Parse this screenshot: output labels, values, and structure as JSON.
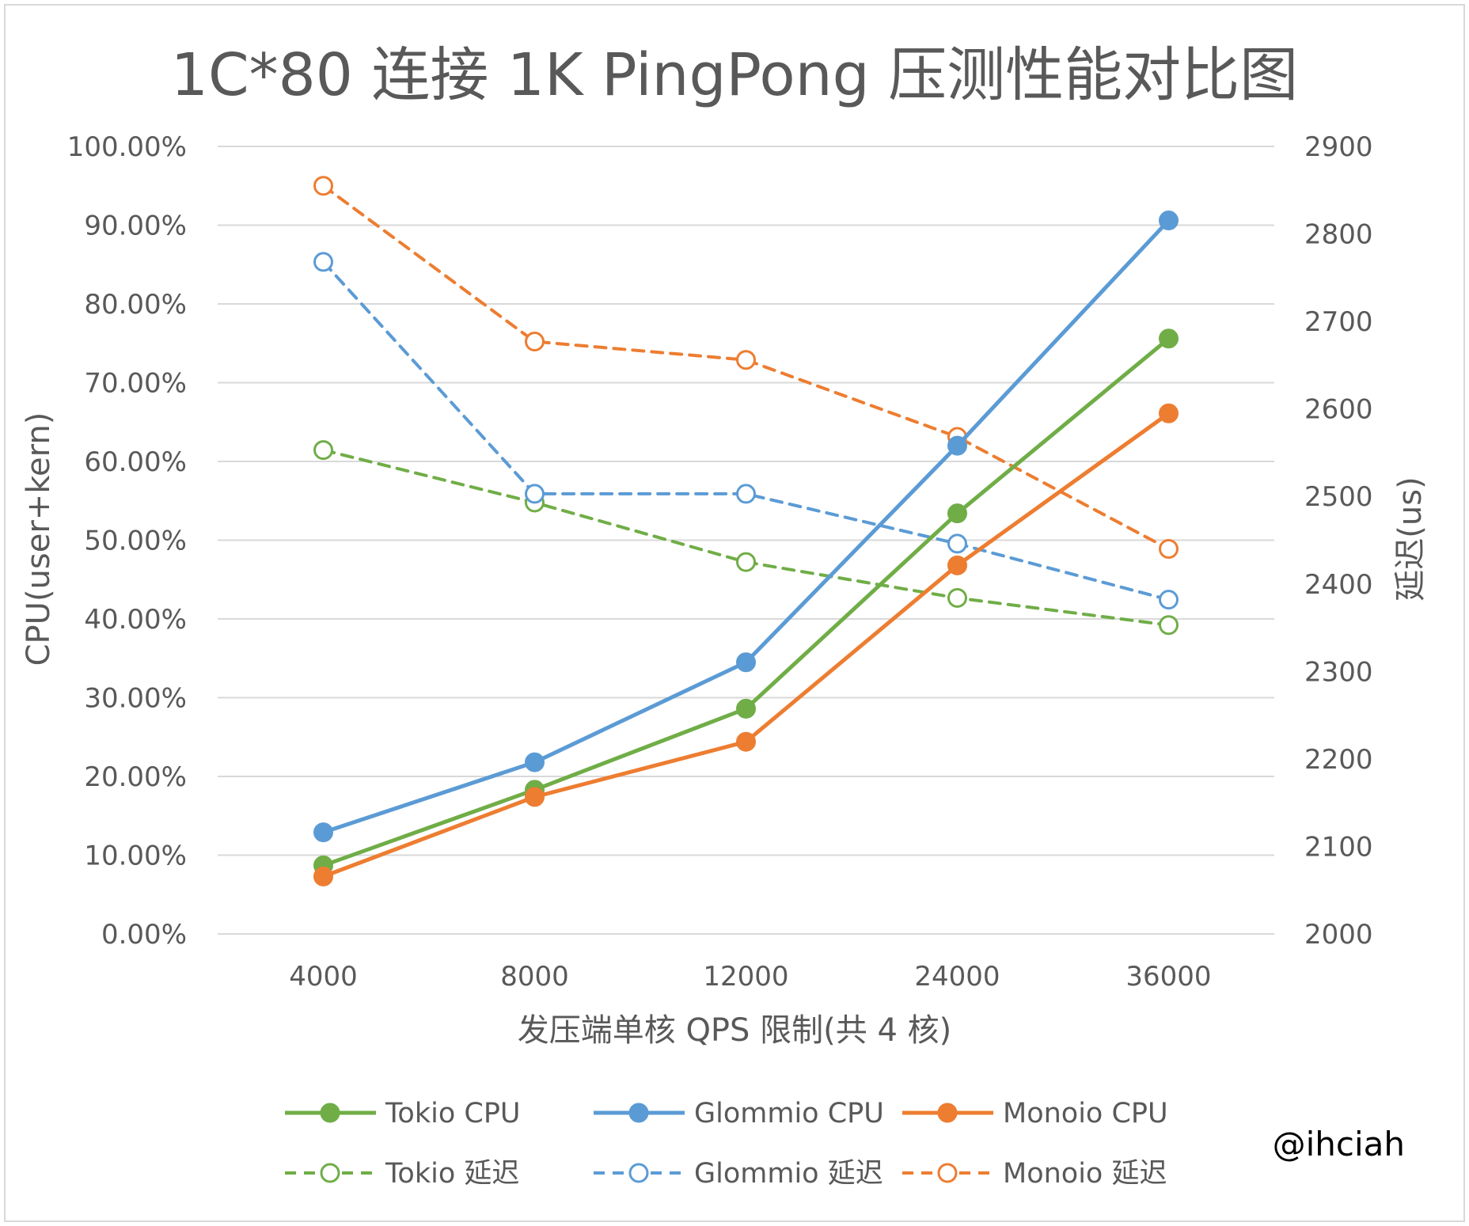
{
  "chart_data": {
    "type": "line",
    "title": "1C*80 连接 1K PingPong 压测性能对比图",
    "xlabel": "发压端单核 QPS 限制(共 4 核)",
    "ylabel": "CPU(user+kern)",
    "y2label": "延迟(us)",
    "categories": [
      "4000",
      "8000",
      "12000",
      "24000",
      "36000"
    ],
    "ylim": [
      0,
      100
    ],
    "y_ticks": [
      "0.00%",
      "10.00%",
      "20.00%",
      "30.00%",
      "40.00%",
      "50.00%",
      "60.00%",
      "70.00%",
      "80.00%",
      "90.00%",
      "100.00%"
    ],
    "y2lim": [
      2000,
      2900
    ],
    "y2_ticks": [
      "2000",
      "2100",
      "2200",
      "2300",
      "2400",
      "2500",
      "2600",
      "2700",
      "2800",
      "2900"
    ],
    "grid": true,
    "legend_position": "bottom",
    "series": [
      {
        "name": "Tokio CPU",
        "axis": "left",
        "style": "solid",
        "marker": "filled",
        "color": "#70ad47",
        "values": [
          8.7,
          18.3,
          28.6,
          53.4,
          75.6
        ]
      },
      {
        "name": "Glommio CPU",
        "axis": "left",
        "style": "solid",
        "marker": "filled",
        "color": "#5b9bd5",
        "values": [
          12.9,
          21.8,
          34.5,
          62.0,
          90.6
        ]
      },
      {
        "name": "Monoio CPU",
        "axis": "left",
        "style": "solid",
        "marker": "filled",
        "color": "#ed7d31",
        "values": [
          7.3,
          17.4,
          24.4,
          46.8,
          66.1
        ]
      },
      {
        "name": "Tokio 延迟",
        "axis": "right",
        "style": "dashed",
        "marker": "hollow",
        "color": "#70ad47",
        "values": [
          2553,
          2493,
          2425,
          2384,
          2353
        ]
      },
      {
        "name": "Glommio 延迟",
        "axis": "right",
        "style": "dashed",
        "marker": "hollow",
        "color": "#5b9bd5",
        "values": [
          2768,
          2503,
          2503,
          2446,
          2382
        ]
      },
      {
        "name": "Monoio 延迟",
        "axis": "right",
        "style": "dashed",
        "marker": "hollow",
        "color": "#ed7d31",
        "values": [
          2855,
          2677,
          2656,
          2568,
          2440
        ]
      }
    ]
  },
  "watermark": "@ihciah"
}
